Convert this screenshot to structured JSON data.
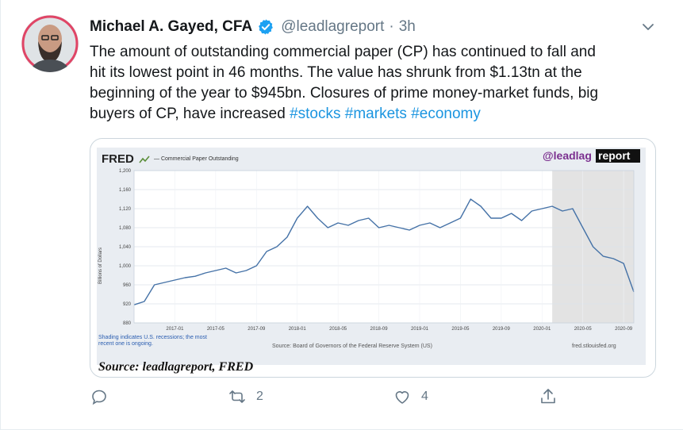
{
  "tweet": {
    "author_name": "Michael A. Gayed, CFA",
    "handle": "@leadlagreport",
    "separator": "·",
    "time": "3h",
    "text_lines": [
      "The amount of outstanding commercial paper (CP) has continued to fall and",
      "hit its lowest point in 46 months. The value has shrunk from $1.13tn at the",
      "beginning of the year to $945bn. Closures of prime money-market funds, big",
      "buyers of CP, have increased "
    ],
    "hashtags": [
      "#stocks",
      "#markets",
      "#economy"
    ]
  },
  "media": {
    "fred_logo": "FRED",
    "legend": "— Commercial Paper Outstanding",
    "brand_prefix": "@leadlag",
    "brand_suffix": "report",
    "y_label": "Billions of Dollars",
    "footnote_line1": "Shading indicates U.S. recessions; the most",
    "footnote_line2": "recent one is ongoing.",
    "source_note": "Source: Board of Governors of the Federal Reserve System (US)",
    "site": "fred.stlouisfed.org",
    "caption": "Source: leadlagreport, FRED"
  },
  "chart_data": {
    "type": "line",
    "title": "",
    "ylabel": "Billions of Dollars",
    "ylim": [
      880,
      1200
    ],
    "y_ticks": [
      "880",
      "920",
      "960",
      "1,000",
      "1,040",
      "1,080",
      "1,120",
      "1,160",
      "1,200"
    ],
    "x_ticks": [
      "2017-01",
      "2017-05",
      "2017-09",
      "2018-01",
      "2018-05",
      "2018-09",
      "2019-01",
      "2019-05",
      "2019-09",
      "2020-01",
      "2020-05",
      "2020-09"
    ],
    "series": [
      {
        "name": "Commercial Paper Outstanding",
        "x": [
          "2016-09",
          "2016-10",
          "2016-11",
          "2016-12",
          "2017-01",
          "2017-02",
          "2017-03",
          "2017-04",
          "2017-05",
          "2017-06",
          "2017-07",
          "2017-08",
          "2017-09",
          "2017-10",
          "2017-11",
          "2017-12",
          "2018-01",
          "2018-02",
          "2018-03",
          "2018-04",
          "2018-05",
          "2018-06",
          "2018-07",
          "2018-08",
          "2018-09",
          "2018-10",
          "2018-11",
          "2018-12",
          "2019-01",
          "2019-02",
          "2019-03",
          "2019-04",
          "2019-05",
          "2019-06",
          "2019-07",
          "2019-08",
          "2019-09",
          "2019-10",
          "2019-11",
          "2019-12",
          "2020-01",
          "2020-02",
          "2020-03",
          "2020-04",
          "2020-05",
          "2020-06",
          "2020-07",
          "2020-08",
          "2020-09",
          "2020-10"
        ],
        "values": [
          918,
          925,
          960,
          965,
          970,
          975,
          978,
          985,
          990,
          995,
          985,
          990,
          1000,
          1030,
          1040,
          1060,
          1100,
          1125,
          1100,
          1080,
          1090,
          1085,
          1095,
          1100,
          1080,
          1085,
          1080,
          1075,
          1085,
          1090,
          1080,
          1090,
          1100,
          1140,
          1125,
          1100,
          1100,
          1110,
          1095,
          1115,
          1120,
          1125,
          1115,
          1120,
          1080,
          1040,
          1020,
          1015,
          1005,
          945
        ]
      }
    ],
    "recession_shading": {
      "start": "2020-02",
      "end": "2020-10"
    },
    "grid": true
  }
}
